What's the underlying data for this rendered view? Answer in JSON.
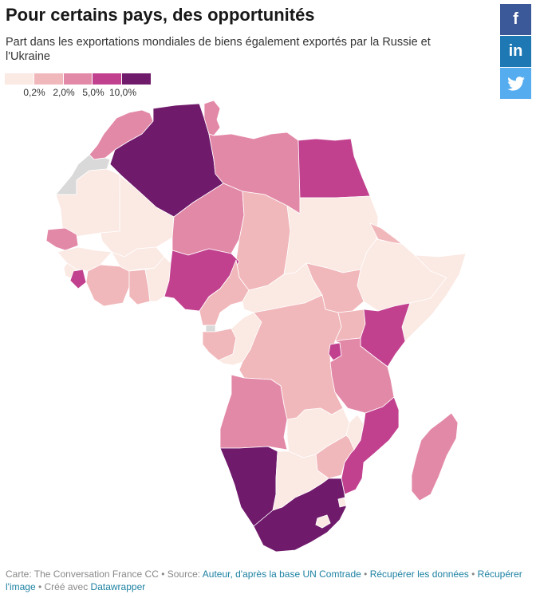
{
  "header": {
    "title": "Pour certains pays, des opportunités",
    "subtitle": "Part dans les exportations mondiales de biens également exportés par la Russie et l'Ukraine"
  },
  "legend": {
    "colors": [
      "#fbe9e3",
      "#f1b8bb",
      "#e389a8",
      "#c1418f",
      "#6f1a6b"
    ],
    "labels": [
      "0,2%",
      "2,0%",
      "5,0%",
      "10,0%"
    ]
  },
  "share": {
    "facebook": {
      "label": "f",
      "color": "#3b5998"
    },
    "linkedin": {
      "label": "in",
      "color": "#1e78b4"
    },
    "twitter": {
      "label": "🐦",
      "color": "#55acee"
    }
  },
  "map": {
    "no_data_color": "#d9d9d9",
    "countries": [
      {
        "name": "morocco",
        "class": 2
      },
      {
        "name": "western-sahara",
        "class": -1
      },
      {
        "name": "algeria",
        "class": 4
      },
      {
        "name": "tunisia",
        "class": 2
      },
      {
        "name": "libya",
        "class": 2
      },
      {
        "name": "egypt",
        "class": 3
      },
      {
        "name": "mauritania",
        "class": 0
      },
      {
        "name": "mali",
        "class": 0
      },
      {
        "name": "niger",
        "class": 2
      },
      {
        "name": "chad",
        "class": 1
      },
      {
        "name": "sudan",
        "class": 0
      },
      {
        "name": "eritrea",
        "class": 1
      },
      {
        "name": "ethiopia",
        "class": 0
      },
      {
        "name": "somalia",
        "class": 0
      },
      {
        "name": "senegal",
        "class": 2
      },
      {
        "name": "guinea",
        "class": 0
      },
      {
        "name": "sierra-leone",
        "class": 0
      },
      {
        "name": "liberia",
        "class": 3
      },
      {
        "name": "cote-divoire",
        "class": 1
      },
      {
        "name": "burkina-faso",
        "class": 0
      },
      {
        "name": "ghana",
        "class": 1
      },
      {
        "name": "togo-benin",
        "class": 0
      },
      {
        "name": "nigeria",
        "class": 3
      },
      {
        "name": "cameroon",
        "class": 1
      },
      {
        "name": "central-african-republic",
        "class": 0
      },
      {
        "name": "south-sudan",
        "class": 1
      },
      {
        "name": "equatorial-guinea",
        "class": -1
      },
      {
        "name": "gabon",
        "class": 1
      },
      {
        "name": "congo",
        "class": 0
      },
      {
        "name": "dr-congo",
        "class": 1
      },
      {
        "name": "uganda",
        "class": 1
      },
      {
        "name": "kenya",
        "class": 3
      },
      {
        "name": "rwanda-burundi",
        "class": 3
      },
      {
        "name": "tanzania",
        "class": 2
      },
      {
        "name": "angola",
        "class": 2
      },
      {
        "name": "zambia",
        "class": 0
      },
      {
        "name": "malawi",
        "class": 0
      },
      {
        "name": "mozambique",
        "class": 3
      },
      {
        "name": "zimbabwe",
        "class": 1
      },
      {
        "name": "namibia",
        "class": 4
      },
      {
        "name": "botswana",
        "class": 0
      },
      {
        "name": "south-africa",
        "class": 4
      },
      {
        "name": "lesotho",
        "class": 0
      },
      {
        "name": "eswatini",
        "class": 0
      },
      {
        "name": "madagascar",
        "class": 2
      }
    ]
  },
  "footer": {
    "prefix": "Carte: The Conversation France CC • Source: ",
    "source_link": "Auteur, d'après la base UN Comtrade",
    "sep1": " • ",
    "get_data": "Récupérer les données",
    "sep2": " • ",
    "get_image": "Récupérer l'image",
    "sep3": " • Créé avec ",
    "datawrapper": "Datawrapper"
  }
}
